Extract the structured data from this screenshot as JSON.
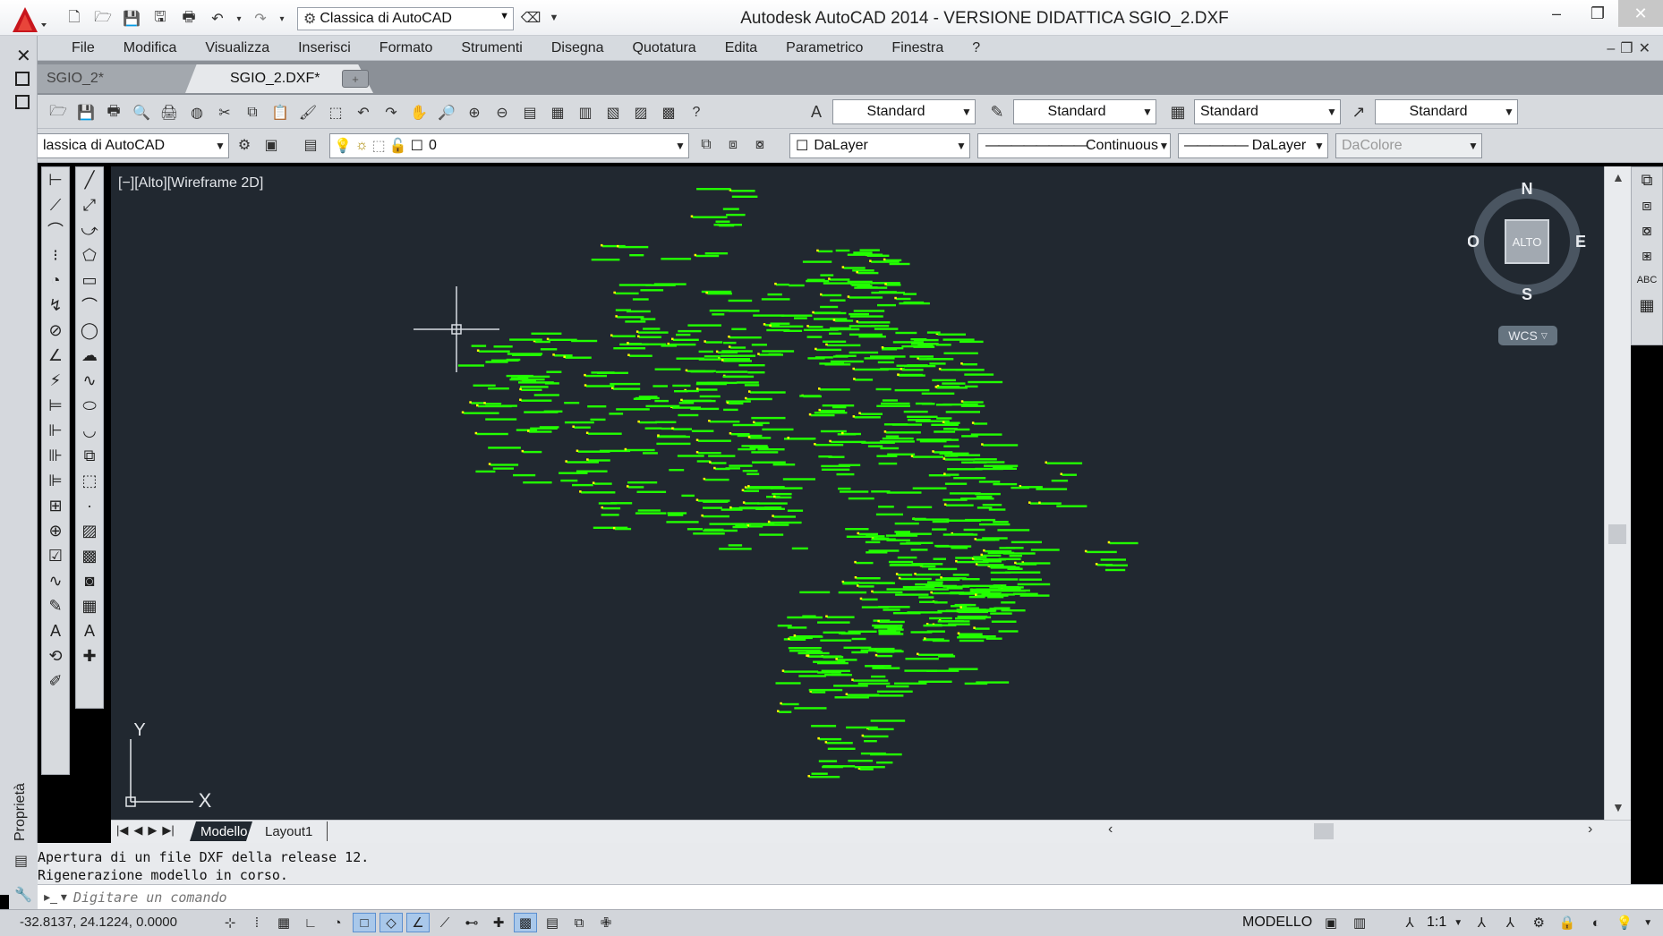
{
  "titlebar": {
    "workspace": "Classica di AutoCAD",
    "title": "Autodesk AutoCAD 2014 - VERSIONE DIDATTICA    SGIO_2.DXF"
  },
  "menu": {
    "items": [
      "File",
      "Modifica",
      "Visualizza",
      "Inserisci",
      "Formato",
      "Strumenti",
      "Disegna",
      "Quotatura",
      "Edita",
      "Parametrico",
      "Finestra",
      "?"
    ]
  },
  "tabs": {
    "inactive": "SGIO_2*",
    "active": "SGIO_2.DXF*"
  },
  "styles_toolbar": {
    "text_style": "Standard",
    "dim_style": "Standard",
    "table_style": "Standard",
    "mleader_style": "Standard"
  },
  "layers_toolbar": {
    "workspace": "lassica di AutoCAD",
    "layer": "0",
    "color": "DaLayer",
    "linetype": "Continuous",
    "lineweight": "DaLayer",
    "plotstyle": "DaColore"
  },
  "viewport": {
    "label": "[−][Alto][Wireframe 2D]"
  },
  "viewcube": {
    "north": "N",
    "south": "S",
    "east": "E",
    "west": "O",
    "face": "ALTO",
    "wcs": "WCS"
  },
  "ucs": {
    "x": "X",
    "y": "Y"
  },
  "layout_tabs": [
    "Modello",
    "Layout1"
  ],
  "side_panel": {
    "label": "Proprietà"
  },
  "command": {
    "history": [
      "Apertura di un file DXF della release 12.",
      "Rigenerazione modello in corso."
    ],
    "placeholder": "Digitare un comando"
  },
  "status": {
    "coords": "-32.8137, 24.1224, 0.0000",
    "space": "MODELLO",
    "scale": "1:1"
  },
  "colors": {
    "canvas": "#212830",
    "points": "#22ff00",
    "marker": "#ffff00"
  }
}
